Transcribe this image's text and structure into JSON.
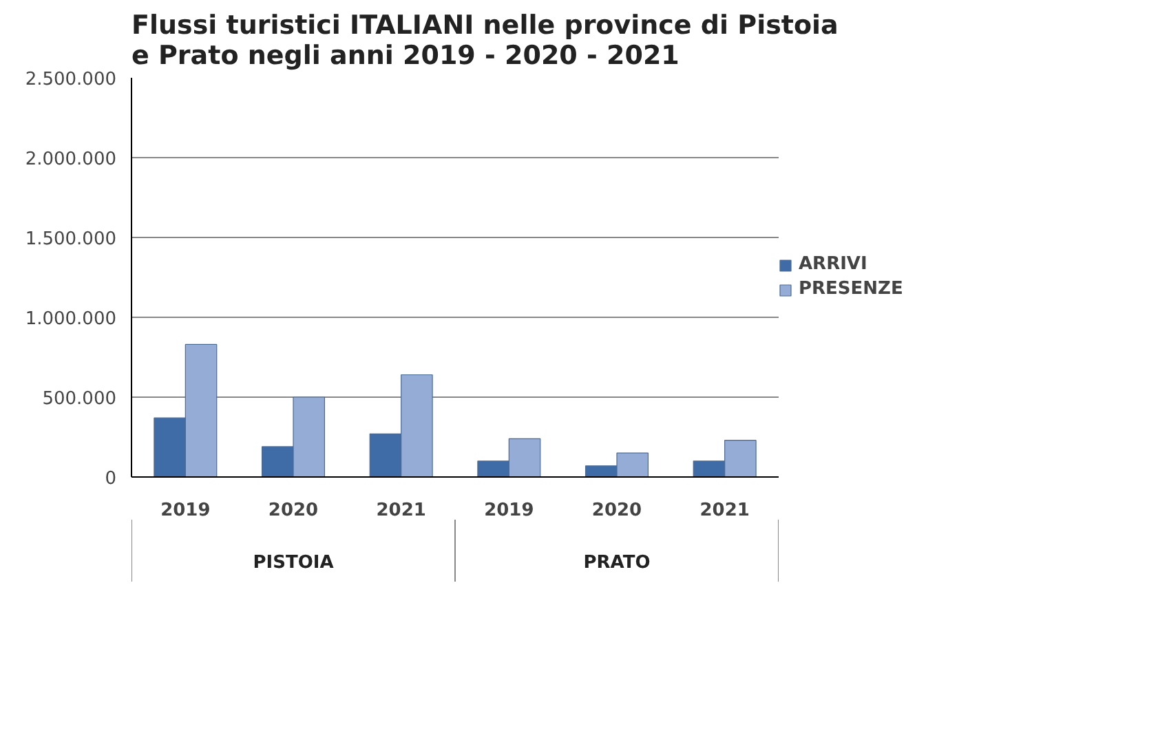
{
  "chart_data": {
    "type": "bar",
    "title": "Flussi turistici ITALIANI nelle province di Pistoia\ne Prato negli anni 2019 - 2020 - 2021",
    "categories": [
      "2019",
      "2020",
      "2021",
      "2019",
      "2020",
      "2021"
    ],
    "series": [
      {
        "name": "ARRIVI",
        "color": "#3f6ba6",
        "values": [
          370000,
          190000,
          270000,
          100000,
          70000,
          100000
        ]
      },
      {
        "name": "PRESENZE",
        "color": "#95acd7",
        "values": [
          830000,
          500000,
          640000,
          240000,
          150000,
          230000
        ]
      }
    ],
    "annotations": [
      "PISTOIA",
      "PRATO"
    ],
    "ylim": [
      0,
      2500000
    ],
    "yticks": [
      {
        "value": 0,
        "label": "0"
      },
      {
        "value": 500000,
        "label": "500.000"
      },
      {
        "value": 1000000,
        "label": "1.000.000"
      },
      {
        "value": 1500000,
        "label": "1.500.000"
      },
      {
        "value": 2000000,
        "label": "2.000.000"
      },
      {
        "value": 2500000,
        "label": "2.500.000"
      }
    ],
    "grid": "y",
    "legend": "right"
  }
}
